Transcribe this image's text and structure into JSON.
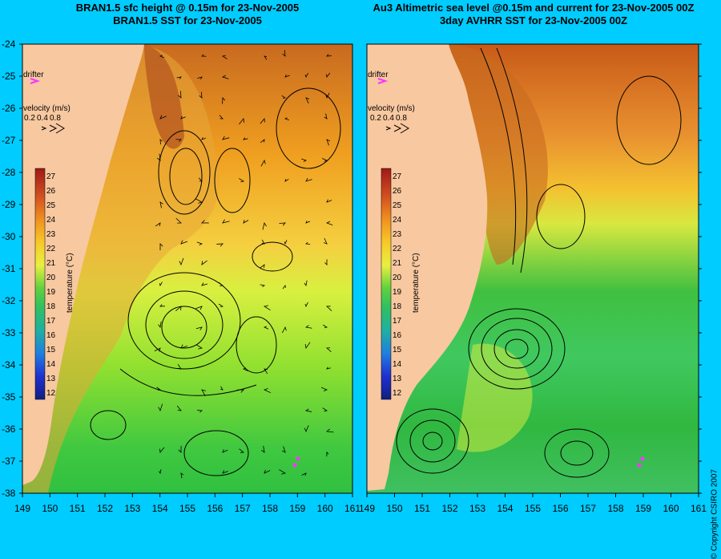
{
  "left_panel": {
    "title_line1": "BRAN1.5 sfc height @ 0.15m for 23-Nov-2005",
    "title_line2": "BRAN1.5 SST for 23-Nov-2005"
  },
  "right_panel": {
    "title_line1": "Au3 Altimetric sea level  @0.15m and current for 23-Nov-2005 00Z",
    "title_line2": "3day AVHRR SST for 23-Nov-2005 00Z"
  },
  "legend": {
    "drifter_label": "drifter",
    "velocity_label": "velocity (m/s)",
    "velocity_scale": [
      "0.2",
      "0.4",
      "0.8"
    ],
    "colorbar_label": "temperature (°C)",
    "colorbar_ticks": [
      "27",
      "26",
      "25",
      "24",
      "23",
      "22",
      "21",
      "20",
      "19",
      "18",
      "17",
      "16",
      "15",
      "14",
      "13",
      "12"
    ]
  },
  "axes": {
    "lat_ticks": [
      "-24",
      "-25",
      "-26",
      "-27",
      "-28",
      "-29",
      "-30",
      "-31",
      "-32",
      "-33",
      "-34",
      "-35",
      "-36",
      "-37",
      "-38"
    ],
    "lon_ticks": [
      "149",
      "150",
      "151",
      "152",
      "153",
      "154",
      "155",
      "156",
      "157",
      "158",
      "159",
      "160",
      "161"
    ]
  },
  "copyright": "© Copyright CSIRO 2007",
  "colors": {
    "background": "#00ccff",
    "land": "#f8c8a0",
    "drifter": "#ff33ff"
  }
}
